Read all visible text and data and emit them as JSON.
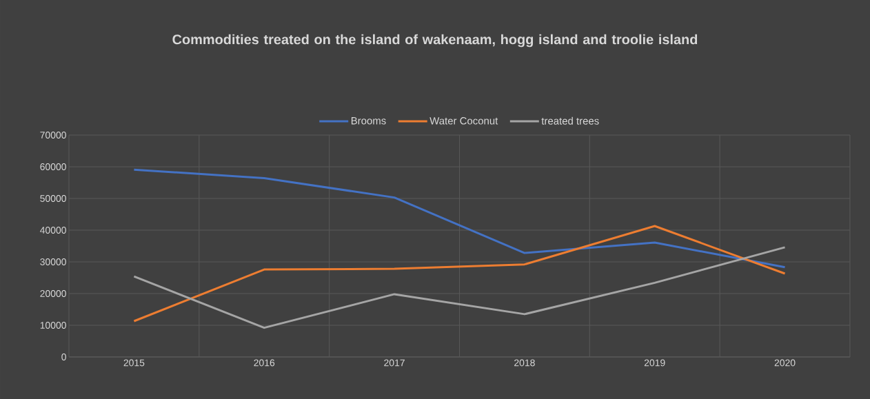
{
  "chart_data": {
    "type": "line",
    "title": "Commodities treated on the island of wakenaam, hogg island and troolie island",
    "categories": [
      "2015",
      "2016",
      "2017",
      "2018",
      "2019",
      "2020"
    ],
    "series": [
      {
        "name": "Brooms",
        "color": "#4472c4",
        "values": [
          59100,
          56400,
          50300,
          32800,
          36100,
          28300
        ]
      },
      {
        "name": "Water Coconut",
        "color": "#ed7d31",
        "values": [
          11300,
          27600,
          27800,
          29200,
          41300,
          26300
        ]
      },
      {
        "name": "treated trees",
        "color": "#a5a5a5",
        "values": [
          25400,
          9200,
          19800,
          13500,
          23400,
          34600
        ]
      }
    ],
    "ylim": [
      0,
      70000
    ],
    "yticks": [
      0,
      10000,
      20000,
      30000,
      40000,
      50000,
      60000,
      70000
    ],
    "grid": true,
    "legend": "top",
    "marker": "none",
    "line_style": "solid"
  }
}
